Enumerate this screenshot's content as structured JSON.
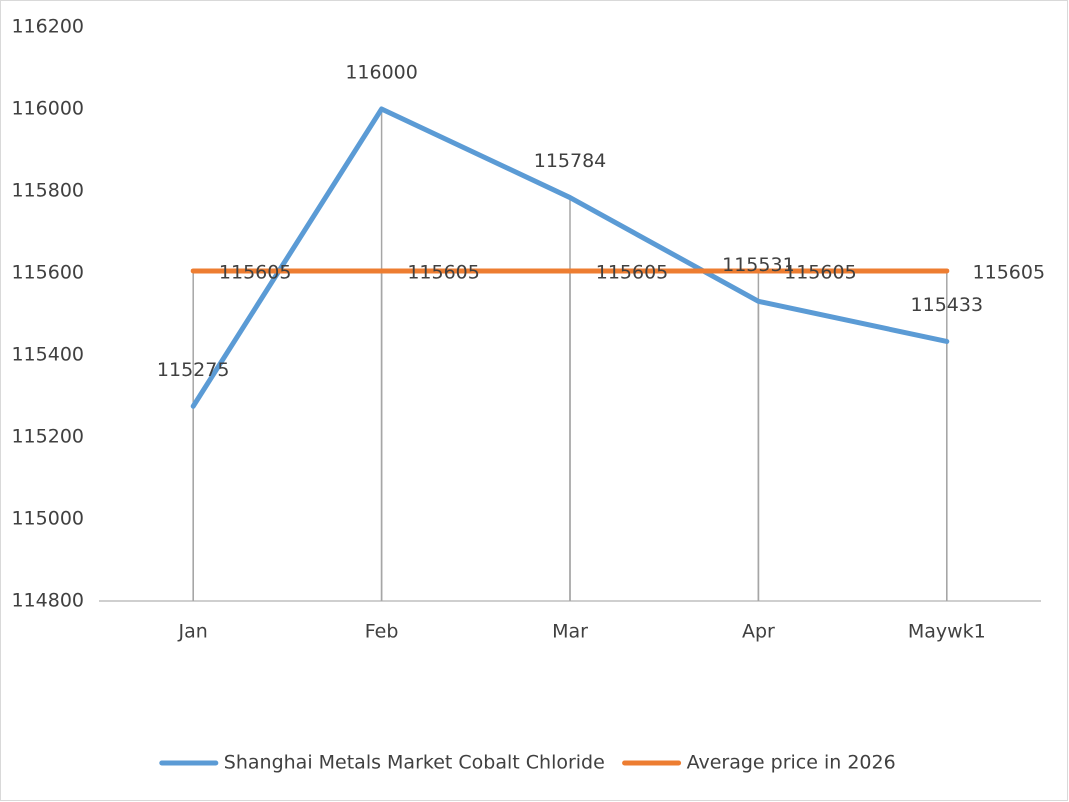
{
  "chart_data": {
    "type": "line",
    "categories": [
      "Jan",
      "Feb",
      "Mar",
      "Apr",
      "Maywk1"
    ],
    "series": [
      {
        "name": "Shanghai Metals Market Cobalt Chloride",
        "color": "#5b9bd5",
        "values": [
          115275,
          116000,
          115784,
          115531,
          115433
        ]
      },
      {
        "name": "Average price in 2026",
        "color": "#ed7d31",
        "values": [
          115605,
          115605,
          115605,
          115605,
          115605
        ]
      }
    ],
    "ylim": [
      114800,
      116200
    ],
    "yticks": [
      114800,
      115000,
      115200,
      115400,
      115600,
      115800,
      116000,
      116200
    ],
    "drop_lines": true,
    "data_labels": true,
    "legend": "bottom"
  }
}
